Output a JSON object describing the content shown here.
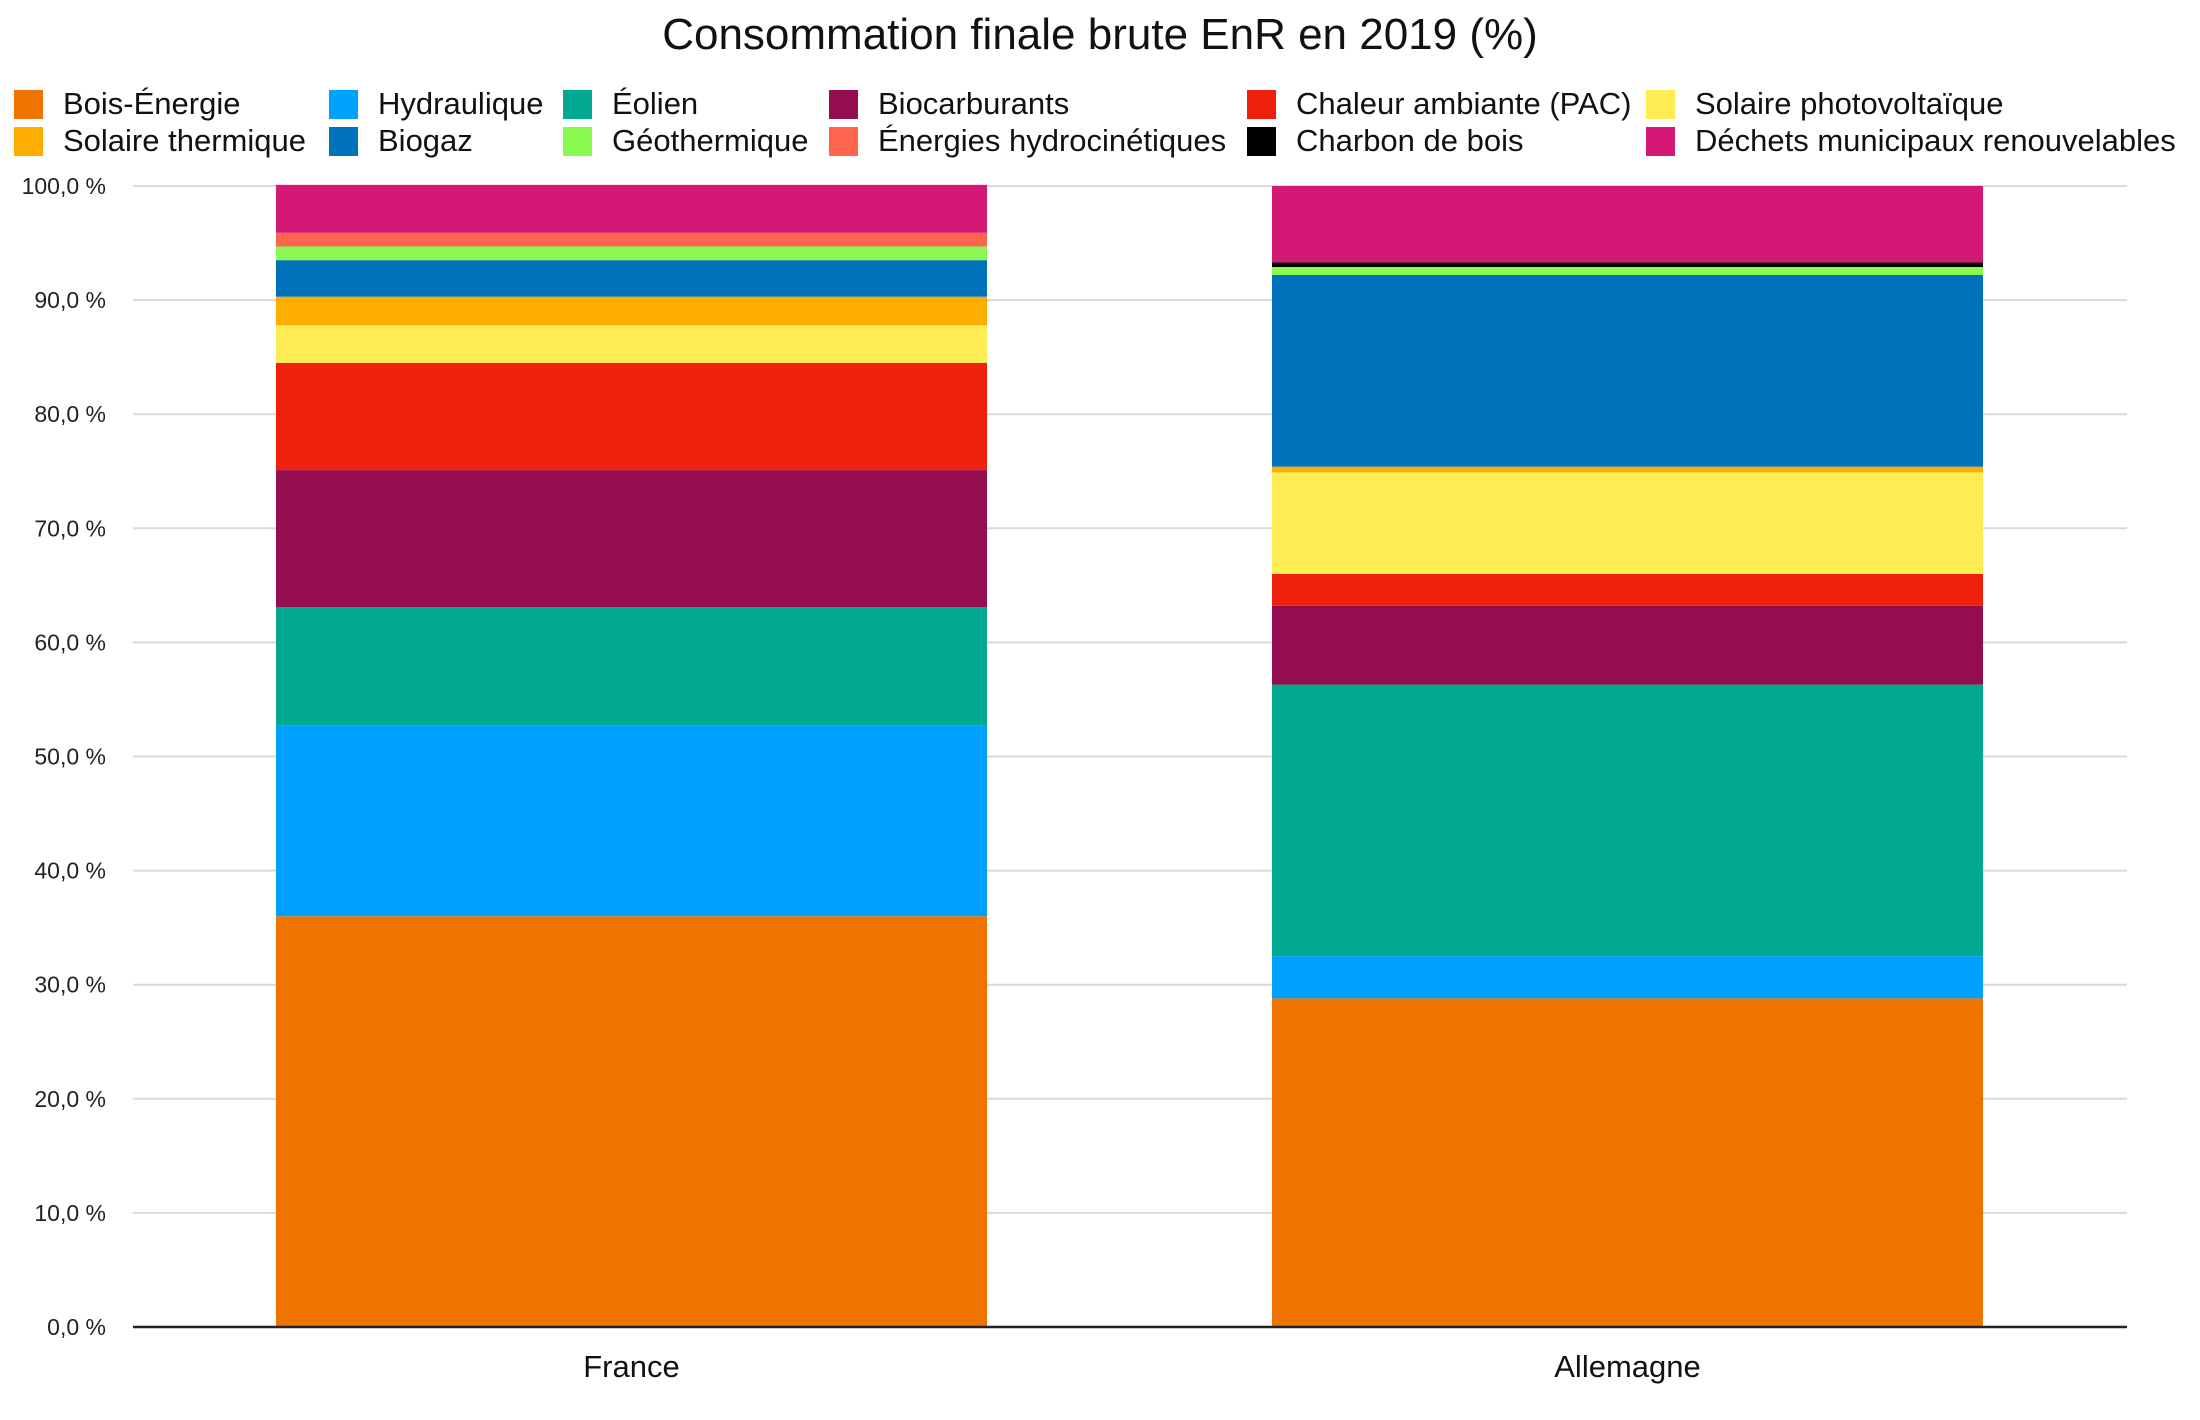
{
  "chart_data": {
    "type": "bar",
    "stacked": true,
    "title": "Consommation finale brute EnR en 2019 (%)",
    "xlabel": "",
    "ylabel": "",
    "ylim": [
      0,
      100
    ],
    "y_ticks": [
      "0,0 %",
      "10,0 %",
      "20,0 %",
      "30,0 %",
      "40,0 %",
      "50,0 %",
      "60,0 %",
      "70,0 %",
      "80,0 %",
      "90,0 %",
      "100,0 %"
    ],
    "grid": true,
    "legend_position": "top",
    "categories": [
      "France",
      "Allemagne"
    ],
    "series": [
      {
        "name": "Bois-Énergie",
        "color": "#f07300",
        "values": [
          36.0,
          28.8
        ]
      },
      {
        "name": "Hydraulique",
        "color": "#00a2ff",
        "values": [
          16.7,
          3.7
        ]
      },
      {
        "name": "Éolien",
        "color": "#00a98f",
        "values": [
          10.4,
          23.8
        ]
      },
      {
        "name": "Biocarburants",
        "color": "#930d4f",
        "values": [
          12.0,
          6.9
        ]
      },
      {
        "name": "Chaleur ambiante (PAC)",
        "color": "#ee220c",
        "values": [
          9.4,
          2.8
        ]
      },
      {
        "name": "Solaire photovoltaïque",
        "color": "#ffec52",
        "values": [
          3.3,
          8.9
        ]
      },
      {
        "name": "Solaire thermique",
        "color": "#feae00",
        "values": [
          2.5,
          0.5
        ]
      },
      {
        "name": "Biogaz",
        "color": "#0071bb",
        "values": [
          3.2,
          16.8
        ]
      },
      {
        "name": "Géothermique",
        "color": "#89f94f",
        "values": [
          1.2,
          0.7
        ]
      },
      {
        "name": "Énergies hydrocinétiques",
        "color": "#ff644e",
        "values": [
          1.2,
          0.0
        ]
      },
      {
        "name": "Charbon de bois",
        "color": "#000000",
        "values": [
          0.0,
          0.4
        ]
      },
      {
        "name": "Déchets municipaux renouvelables",
        "color": "#d41876",
        "values": [
          4.2,
          6.7
        ]
      }
    ],
    "legend_order": [
      "Bois-Énergie",
      "Hydraulique",
      "Éolien",
      "Biocarburants",
      "Chaleur ambiante (PAC)",
      "Solaire photovoltaïque",
      "Solaire thermique",
      "Biogaz",
      "Géothermique",
      "Énergies hydrocinétiques",
      "Charbon de bois",
      "Déchets municipaux renouvelables"
    ]
  }
}
